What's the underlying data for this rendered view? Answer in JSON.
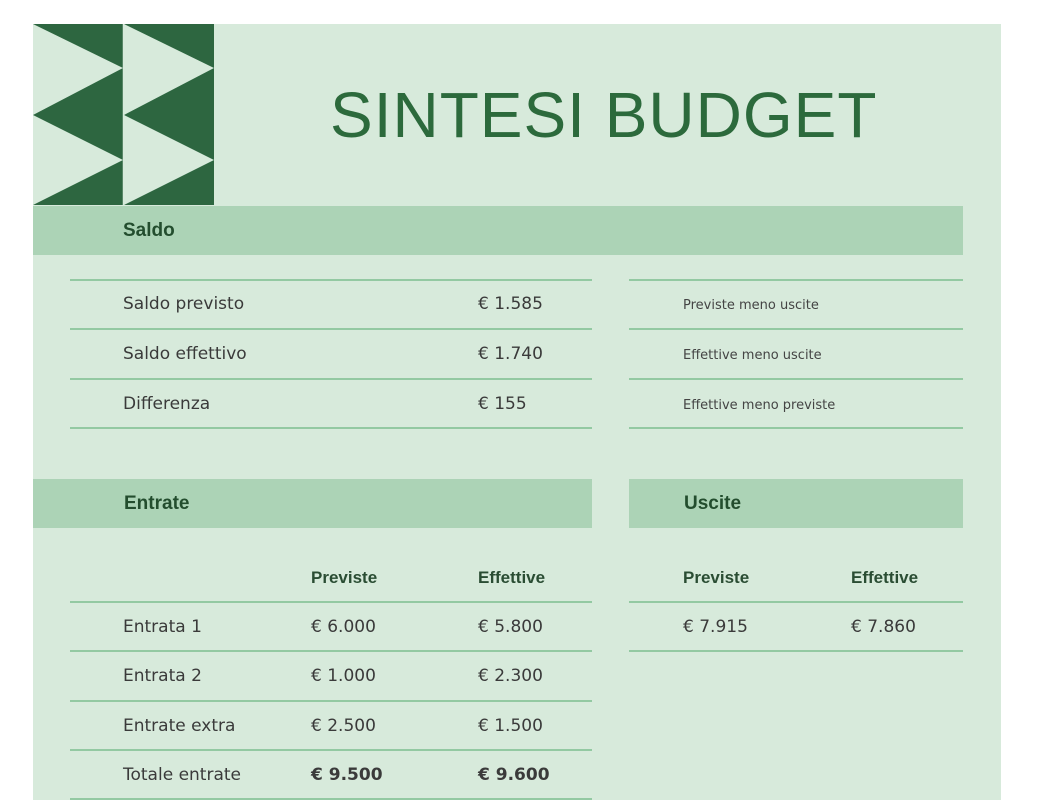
{
  "title": "SINTESI BUDGET",
  "colors": {
    "panel": "#d7eadb",
    "band": "#acd3b6",
    "dark_green": "#2c6a3c",
    "rule": "#93c9a2"
  },
  "saldo": {
    "heading": "Saldo",
    "rows": [
      {
        "label": "Saldo previsto",
        "value": "€ 1.585",
        "note": "Previste meno uscite"
      },
      {
        "label": "Saldo effettivo",
        "value": "€ 1.740",
        "note": "Effettive meno uscite"
      },
      {
        "label": "Differenza",
        "value": "€ 155",
        "note": "Effettive meno previste"
      }
    ]
  },
  "entrate": {
    "heading": "Entrate",
    "columns": [
      "Previste",
      "Effettive"
    ],
    "rows": [
      {
        "label": "Entrata 1",
        "previste": "€ 6.000",
        "effettive": "€ 5.800"
      },
      {
        "label": "Entrata 2",
        "previste": "€ 1.000",
        "effettive": "€ 2.300"
      },
      {
        "label": "Entrate extra",
        "previste": "€ 2.500",
        "effettive": "€ 1.500"
      },
      {
        "label": "Totale entrate",
        "previste": "€ 9.500",
        "effettive": "€ 9.600"
      }
    ]
  },
  "uscite": {
    "heading": "Uscite",
    "columns": [
      "Previste",
      "Effettive"
    ],
    "row": {
      "previste": "€ 7.915",
      "effettive": "€ 7.860"
    }
  }
}
